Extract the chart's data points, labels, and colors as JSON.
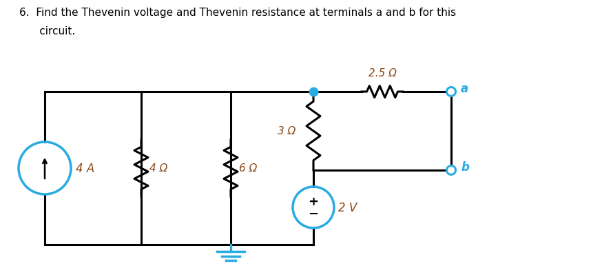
{
  "title_line1": "6.  Find the Thevenin voltage and Thevenin resistance at terminals a and b for this",
  "title_line2": "      circuit.",
  "bg_color": "#ffffff",
  "circuit_color": "#000000",
  "cyan_color": "#29abe2",
  "label_color": "#8B4513",
  "component_labels": {
    "current_source": "4 A",
    "r1": "4 Ω",
    "r2": "6 Ω",
    "r3": "3 Ω",
    "r4": "2.5 Ω",
    "voltage_source": "2 V",
    "terminal_a": "a",
    "terminal_b": "b"
  },
  "figsize": [
    8.74,
    4.06
  ],
  "dpi": 100
}
